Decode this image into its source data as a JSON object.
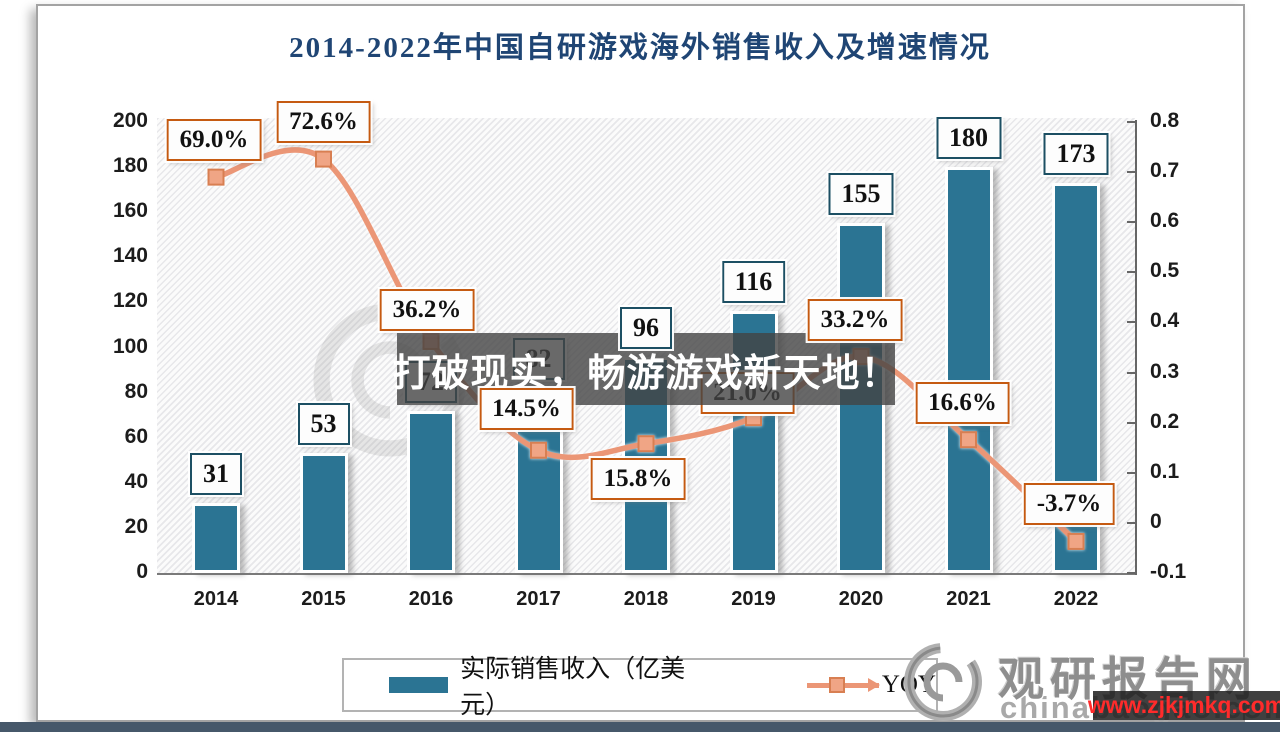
{
  "title": "2014-2022年中国自研游戏海外销售收入及增速情况",
  "overlay": {
    "text": "打破现实，畅游游戏新天地！"
  },
  "legend": {
    "items": [
      {
        "label": "实际销售收入（亿美元）"
      },
      {
        "label": "YOY"
      }
    ]
  },
  "footer": {
    "site_name": "观研报告网",
    "site_domain": "chinabaogao.com",
    "url_badge": "www.zjkjmkq.com"
  },
  "colors": {
    "bar": "#2b7493",
    "bar_label_border": "#1c4f63",
    "line": "#eb9676",
    "marker_fill": "#f0a585",
    "marker_stroke": "#d87f52",
    "yoy_label_border": "#c55a11",
    "title": "#1f4574",
    "url_red": "#ff2b2b"
  },
  "chart_data": {
    "type": "bar",
    "combo": "bar+line",
    "title": "2014-2022年中国自研游戏海外销售收入及增速情况",
    "categories": [
      "2014",
      "2015",
      "2016",
      "2017",
      "2018",
      "2019",
      "2020",
      "2021",
      "2022"
    ],
    "series": [
      {
        "name": "实际销售收入（亿美元）",
        "type": "bar",
        "axis": "left",
        "values": [
          31,
          53,
          72,
          82,
          96,
          116,
          155,
          180,
          173
        ],
        "value_labels": [
          "31",
          "53",
          "72",
          "82",
          "96",
          "116",
          "155",
          "180",
          "173"
        ]
      },
      {
        "name": "YOY",
        "type": "line",
        "axis": "right",
        "values": [
          0.69,
          0.726,
          0.362,
          0.145,
          0.158,
          0.21,
          0.332,
          0.166,
          -0.037
        ],
        "value_labels": [
          "69.0%",
          "72.6%",
          "36.2%",
          "14.5%",
          "15.8%",
          "21.0%",
          "33.2%",
          "16.6%",
          "-3.7%"
        ]
      }
    ],
    "left_axis": {
      "min": 0,
      "max": 200,
      "step": 20,
      "ticks": [
        "0",
        "20",
        "40",
        "60",
        "80",
        "100",
        "120",
        "140",
        "160",
        "180",
        "200"
      ]
    },
    "right_axis": {
      "min": -0.1,
      "max": 0.8,
      "step": 0.1,
      "ticks": [
        "-0.1",
        "0",
        "0.1",
        "0.2",
        "0.3",
        "0.4",
        "0.5",
        "0.6",
        "0.7",
        "0.8"
      ]
    },
    "grid": false,
    "legend_position": "bottom",
    "layout_hints": {
      "yoy_label_side": [
        "above",
        "above",
        "above",
        "above",
        "below",
        "above",
        "above",
        "above",
        "above"
      ],
      "yoy_label_dx": [
        -2,
        0,
        -4,
        -12,
        -8,
        -6,
        -6,
        -6,
        -7
      ],
      "yoy_label_dy": [
        0,
        0,
        6,
        -4,
        0,
        12,
        0,
        0,
        0
      ],
      "labels_behind_overlay": {
        "bar_indices": [
          2,
          3
        ],
        "yoy_indices": [
          5
        ]
      }
    }
  }
}
